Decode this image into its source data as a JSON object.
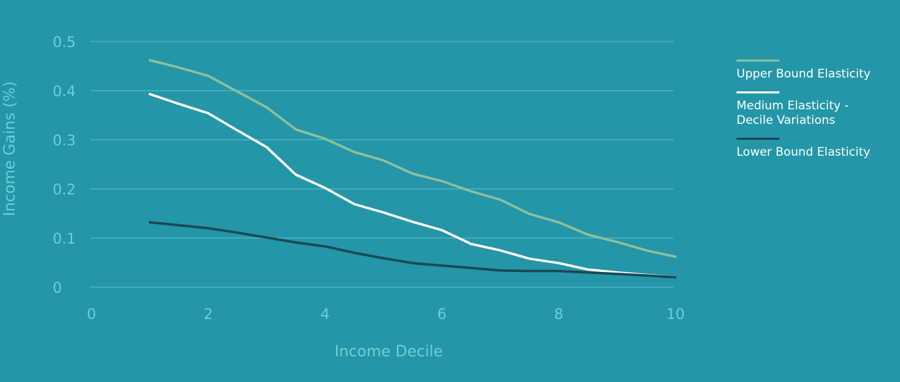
{
  "chart_data": {
    "type": "line",
    "title": "",
    "xlabel": "Income Decile",
    "ylabel": "Income Gains (%)",
    "xlim": [
      0,
      10
    ],
    "ylim": [
      0,
      0.5
    ],
    "x_ticks": [
      "0",
      "2",
      "4",
      "6",
      "8",
      "10"
    ],
    "y_ticks": [
      "0",
      "0.1",
      "0.2",
      "0.3",
      "0.4",
      "0.5"
    ],
    "grid": "horizontal",
    "legend_position": "right",
    "x": [
      1,
      1.5,
      2,
      2.5,
      3,
      3.5,
      4,
      4.5,
      5,
      5.5,
      6,
      6.5,
      7,
      7.5,
      8,
      8.5,
      9,
      9.5,
      10
    ],
    "series": [
      {
        "name": "Upper Bound Elasticity",
        "color": "#8cc09a",
        "values": [
          0.462,
          0.447,
          0.43,
          0.398,
          0.366,
          0.321,
          0.302,
          0.275,
          0.258,
          0.231,
          0.216,
          0.195,
          0.178,
          0.149,
          0.132,
          0.107,
          0.092,
          0.075,
          0.062
        ]
      },
      {
        "name": "Medium Elasticity - Decile Variations",
        "color": "#ffffff",
        "values": [
          0.393,
          0.373,
          0.354,
          0.319,
          0.285,
          0.229,
          0.202,
          0.169,
          0.152,
          0.133,
          0.116,
          0.088,
          0.075,
          0.058,
          0.049,
          0.036,
          0.03,
          0.025,
          0.02
        ]
      },
      {
        "name": "Lower Bound Elasticity",
        "color": "#1a4852",
        "values": [
          0.132,
          0.126,
          0.12,
          0.111,
          0.101,
          0.091,
          0.083,
          0.07,
          0.059,
          0.049,
          0.044,
          0.039,
          0.034,
          0.033,
          0.033,
          0.03,
          0.027,
          0.024,
          0.02
        ]
      }
    ]
  }
}
